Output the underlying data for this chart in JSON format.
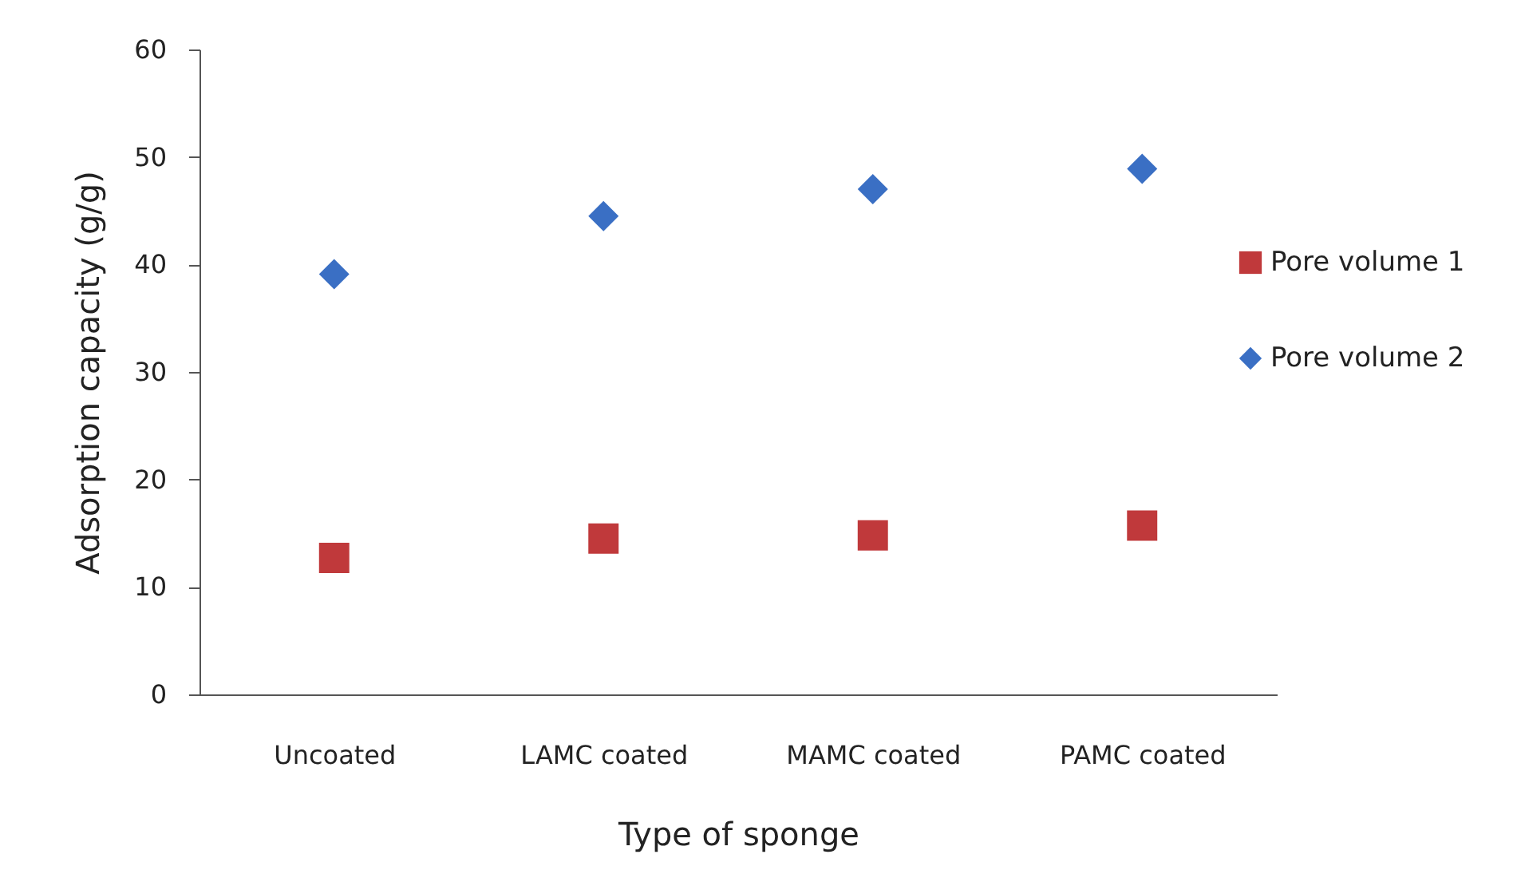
{
  "chart_data": {
    "type": "scatter",
    "xlabel": "Type of sponge",
    "ylabel": "Adsorption capacity (g/g)",
    "categories": [
      "Uncoated",
      "LAMC coated",
      "MAMC coated",
      "PAMC coated"
    ],
    "series": [
      {
        "name": "Pore volume 1",
        "color": "#c0393b",
        "marker": "square",
        "values": [
          12.7,
          14.5,
          14.8,
          15.7
        ]
      },
      {
        "name": "Pore volume 2",
        "color": "#3a6fc4",
        "marker": "diamond",
        "values": [
          39.1,
          44.5,
          47.0,
          48.9
        ]
      }
    ],
    "ylim": [
      0,
      60
    ],
    "yticks": [
      0,
      10,
      20,
      30,
      40,
      50,
      60
    ],
    "grid": false,
    "legend": "right"
  }
}
